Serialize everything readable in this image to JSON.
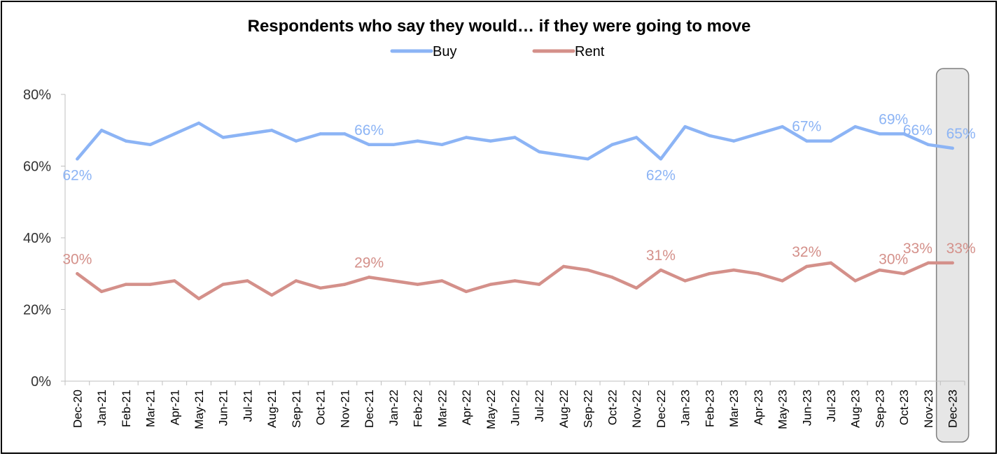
{
  "chart_data": {
    "type": "line",
    "title": "Respondents who say they would… if they were going to move",
    "xlabel": "",
    "ylabel": "",
    "ylim": [
      0,
      80
    ],
    "yticks": [
      "0%",
      "20%",
      "40%",
      "60%",
      "80%"
    ],
    "legend_position": "top-center",
    "grid": false,
    "categories": [
      "Dec-20",
      "Jan-21",
      "Feb-21",
      "Mar-21",
      "Apr-21",
      "May-21",
      "Jun-21",
      "Jul-21",
      "Aug-21",
      "Sep-21",
      "Oct-21",
      "Nov-21",
      "Dec-21",
      "Jan-22",
      "Feb-22",
      "Mar-22",
      "Apr-22",
      "May-22",
      "Jun-22",
      "Jul-22",
      "Aug-22",
      "Sep-22",
      "Oct-22",
      "Nov-22",
      "Dec-22",
      "Jan-23",
      "Feb-23",
      "Mar-23",
      "Apr-23",
      "May-23",
      "Jun-23",
      "Jul-23",
      "Aug-23",
      "Sep-23",
      "Oct-23",
      "Nov-23",
      "Dec-23"
    ],
    "series": [
      {
        "name": "Buy",
        "color": "#8CB4F5",
        "values": [
          62,
          70,
          67,
          66,
          69,
          72,
          68,
          69,
          70,
          67,
          69,
          69,
          66,
          66,
          67,
          66,
          68,
          67,
          68,
          64,
          63,
          62,
          66,
          68,
          62,
          71,
          68.5,
          67,
          69,
          71,
          67,
          67,
          71,
          69,
          69,
          66,
          65
        ],
        "labels": [
          {
            "index": 0,
            "text": "62%",
            "pos": "below"
          },
          {
            "index": 12,
            "text": "66%",
            "pos": "above"
          },
          {
            "index": 24,
            "text": "62%",
            "pos": "below"
          },
          {
            "index": 30,
            "text": "67%",
            "pos": "above"
          },
          {
            "index": 34,
            "text": "69%",
            "pos": "above-left"
          },
          {
            "index": 35,
            "text": "66%",
            "pos": "above-left"
          },
          {
            "index": 36,
            "text": "65%",
            "pos": "above"
          }
        ]
      },
      {
        "name": "Rent",
        "color": "#D4908A",
        "values": [
          30,
          25,
          27,
          27,
          28,
          23,
          27,
          28,
          24,
          28,
          26,
          27,
          29,
          28,
          27,
          28,
          25,
          27,
          28,
          27,
          32,
          31,
          29,
          26,
          31,
          28,
          30,
          31,
          30,
          28,
          32,
          33,
          28,
          31,
          30,
          33,
          33
        ],
        "labels": [
          {
            "index": 0,
            "text": "30%",
            "pos": "above"
          },
          {
            "index": 12,
            "text": "29%",
            "pos": "above"
          },
          {
            "index": 24,
            "text": "31%",
            "pos": "above"
          },
          {
            "index": 30,
            "text": "32%",
            "pos": "above"
          },
          {
            "index": 34,
            "text": "30%",
            "pos": "above-left"
          },
          {
            "index": 35,
            "text": "33%",
            "pos": "above-left"
          },
          {
            "index": 36,
            "text": "33%",
            "pos": "above"
          }
        ]
      }
    ],
    "highlight_category": "Dec-23"
  }
}
